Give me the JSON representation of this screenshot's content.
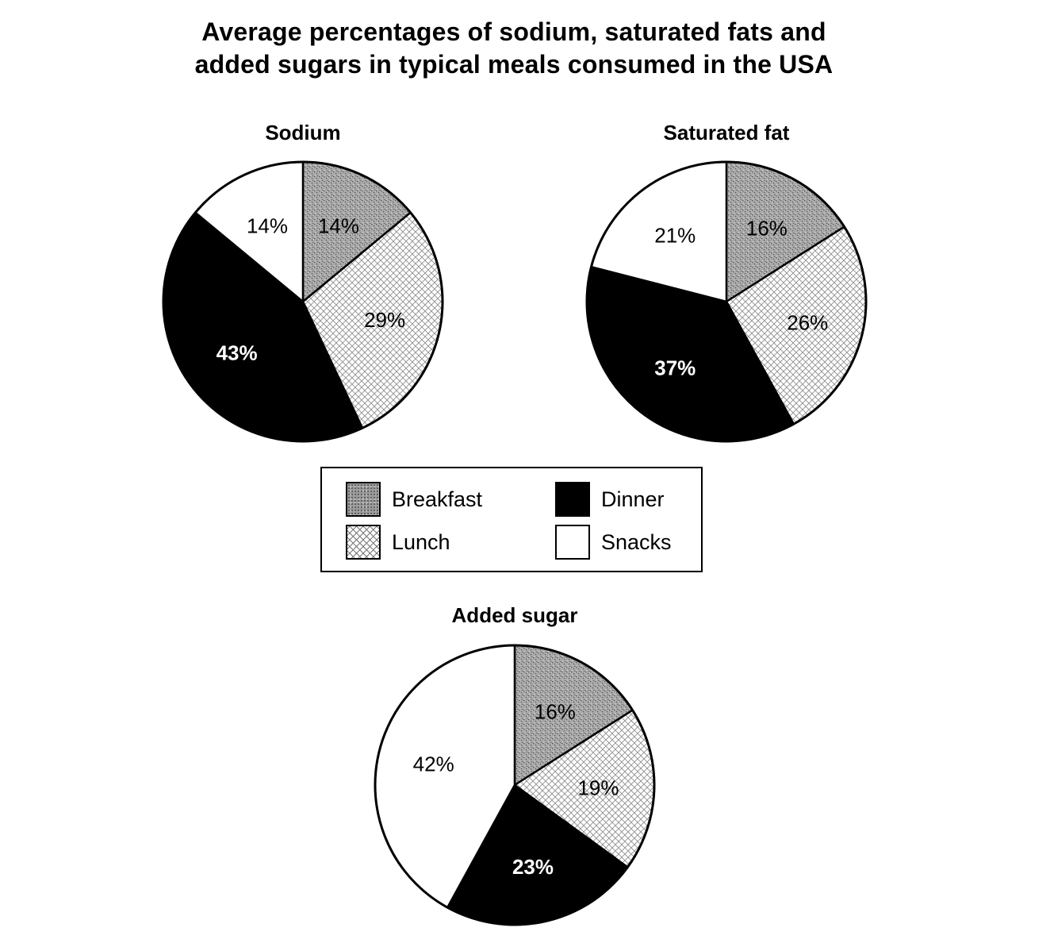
{
  "title_lines": [
    "Average percentages of sodium, saturated fats and",
    "added sugars in typical meals consumed in the USA"
  ],
  "legend": {
    "breakfast": "Breakfast",
    "dinner": "Dinner",
    "lunch": "Lunch",
    "snacks": "Snacks"
  },
  "colors": {
    "breakfast": "#9a9a9a",
    "lunch": "#ffffff",
    "dinner": "#000000",
    "snacks": "#ffffff"
  },
  "chart_data": [
    {
      "type": "pie",
      "title": "Sodium",
      "categories": [
        "Breakfast",
        "Lunch",
        "Dinner",
        "Snacks"
      ],
      "values": [
        14,
        29,
        43,
        14
      ],
      "labels": [
        "14%",
        "29%",
        "43%",
        "14%"
      ]
    },
    {
      "type": "pie",
      "title": "Saturated fat",
      "categories": [
        "Breakfast",
        "Lunch",
        "Dinner",
        "Snacks"
      ],
      "values": [
        16,
        26,
        37,
        21
      ],
      "labels": [
        "16%",
        "26%",
        "37%",
        "21%"
      ]
    },
    {
      "type": "pie",
      "title": "Added sugar",
      "categories": [
        "Breakfast",
        "Lunch",
        "Dinner",
        "Snacks"
      ],
      "values": [
        16,
        19,
        23,
        42
      ],
      "labels": [
        "16%",
        "19%",
        "23%",
        "42%"
      ]
    }
  ]
}
